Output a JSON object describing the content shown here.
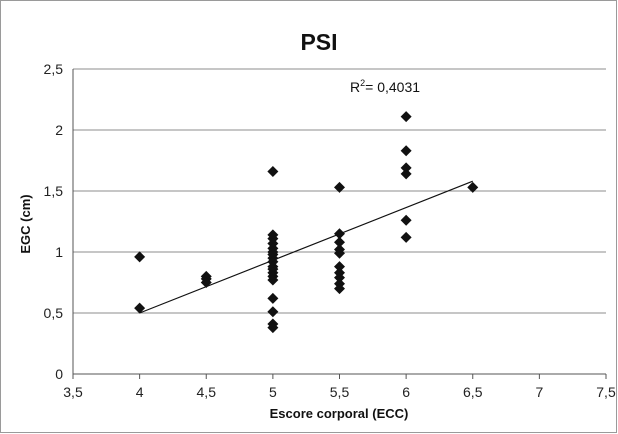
{
  "chart_data": {
    "type": "scatter",
    "title": "PSI",
    "xlabel": "Escore corporal (ECC)",
    "ylabel": "EGC (cm)",
    "xlim": [
      3.5,
      7.5
    ],
    "ylim": [
      0,
      2.5
    ],
    "x_ticks": [
      "3,5",
      "4",
      "4,5",
      "5",
      "5,5",
      "6",
      "6,5",
      "7",
      "7,5"
    ],
    "y_ticks": [
      "0",
      "0,5",
      "1",
      "1,5",
      "2",
      "2,5"
    ],
    "grid": "horizontal",
    "legend": "none",
    "annotation": {
      "prefix": "R",
      "superscript": "2",
      "suffix": "= 0,4031"
    },
    "colors": {
      "marker": "#111111",
      "trendline": "#111111",
      "grid": "#8c8c8c"
    },
    "series": [
      {
        "marker": "diamond",
        "points": [
          [
            4,
            0.96
          ],
          [
            4,
            0.54
          ],
          [
            4.5,
            0.8
          ],
          [
            4.5,
            0.78
          ],
          [
            4.5,
            0.75
          ],
          [
            5,
            1.66
          ],
          [
            5,
            1.14
          ],
          [
            5,
            1.11
          ],
          [
            5,
            1.07
          ],
          [
            5,
            1.03
          ],
          [
            5,
            1.0
          ],
          [
            5,
            0.98
          ],
          [
            5,
            0.95
          ],
          [
            5,
            0.92
          ],
          [
            5,
            0.88
          ],
          [
            5,
            0.86
          ],
          [
            5,
            0.83
          ],
          [
            5,
            0.8
          ],
          [
            5,
            0.77
          ],
          [
            5,
            0.62
          ],
          [
            5,
            0.51
          ],
          [
            5,
            0.41
          ],
          [
            5,
            0.38
          ],
          [
            5.5,
            1.53
          ],
          [
            5.5,
            1.15
          ],
          [
            5.5,
            1.08
          ],
          [
            5.5,
            1.02
          ],
          [
            5.5,
            0.99
          ],
          [
            5.5,
            0.88
          ],
          [
            5.5,
            0.83
          ],
          [
            5.5,
            0.79
          ],
          [
            5.5,
            0.74
          ],
          [
            5.5,
            0.7
          ],
          [
            6,
            2.11
          ],
          [
            6,
            1.83
          ],
          [
            6,
            1.69
          ],
          [
            6,
            1.64
          ],
          [
            6,
            1.26
          ],
          [
            6,
            1.12
          ],
          [
            6.5,
            1.53
          ]
        ]
      }
    ],
    "trendline": {
      "x": [
        4,
        6.5
      ],
      "y": [
        0.5,
        1.58
      ]
    }
  }
}
